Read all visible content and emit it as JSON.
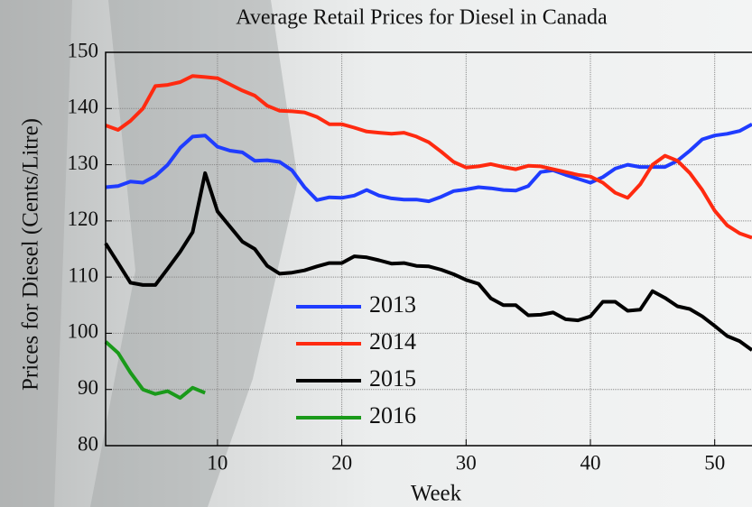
{
  "chart_data": {
    "type": "line",
    "title": "Average Retail Prices for Diesel in Canada",
    "x_label": "Week",
    "y_label": "Prices for Diesel  (Cents/Litre)",
    "x": [
      1,
      2,
      3,
      4,
      5,
      6,
      7,
      8,
      9,
      10,
      11,
      12,
      13,
      14,
      15,
      16,
      17,
      18,
      19,
      20,
      21,
      22,
      23,
      24,
      25,
      26,
      27,
      28,
      29,
      30,
      31,
      32,
      33,
      34,
      35,
      36,
      37,
      38,
      39,
      40,
      41,
      42,
      43,
      44,
      45,
      46,
      47,
      48,
      49,
      50,
      51,
      52,
      53
    ],
    "series": [
      {
        "name": "2013",
        "color": "#1f3cff",
        "values": [
          126,
          126.2,
          127,
          126.8,
          128,
          130,
          133,
          135,
          135.2,
          133.2,
          132.5,
          132.2,
          130.7,
          130.8,
          130.5,
          129,
          126,
          123.7,
          124.2,
          124.1,
          124.5,
          125.5,
          124.5,
          124,
          123.8,
          123.8,
          123.5,
          124.3,
          125.3,
          125.6,
          126,
          125.8,
          125.5,
          125.4,
          126.2,
          128.7,
          129,
          128.2,
          127.5,
          126.8,
          127.8,
          129.3,
          130,
          129.6,
          129.6,
          129.6,
          130.7,
          132.5,
          134.5,
          135.2,
          135.5,
          136,
          137.2
        ]
      },
      {
        "name": "2014",
        "color": "#ff2a10",
        "values": [
          137,
          136.2,
          137.8,
          140,
          144,
          144.2,
          144.7,
          145.8,
          145.6,
          145.4,
          144.3,
          143.2,
          142.3,
          140.5,
          139.6,
          139.5,
          139.3,
          138.5,
          137.2,
          137.2,
          136.6,
          135.9,
          135.7,
          135.5,
          135.7,
          135,
          134,
          132.3,
          130.5,
          129.5,
          129.7,
          130.1,
          129.6,
          129.2,
          129.8,
          129.7,
          129.2,
          128.7,
          128.2,
          127.9,
          126.8,
          125,
          124.1,
          126.5,
          130,
          131.6,
          130.7,
          128.5,
          125.5,
          121.8,
          119.2,
          117.8,
          117
        ]
      },
      {
        "name": "2015",
        "color": "#000000",
        "values": [
          116,
          112.5,
          109,
          108.6,
          108.6,
          111.5,
          114.5,
          118,
          128.5,
          121.7,
          119,
          116.3,
          115,
          112,
          110.6,
          110.8,
          111.2,
          111.9,
          112.5,
          112.5,
          113.7,
          113.5,
          113,
          112.4,
          112.5,
          112,
          111.9,
          111.3,
          110.5,
          109.5,
          108.8,
          106.2,
          105,
          105,
          103.2,
          103.3,
          103.7,
          102.5,
          102.3,
          103,
          105.6,
          105.6,
          104,
          104.2,
          107.5,
          106.3,
          104.8,
          104.3,
          103,
          101.3,
          99.5,
          98.6,
          97
        ]
      },
      {
        "name": "2016",
        "color": "#1a9a1a",
        "values": [
          98.5,
          96.5,
          93,
          90,
          89.2,
          89.7,
          88.5,
          90.3,
          89.4,
          null,
          null,
          null,
          null,
          null,
          null,
          null,
          null,
          null,
          null,
          null,
          null,
          null,
          null,
          null,
          null,
          null,
          null,
          null,
          null,
          null,
          null,
          null,
          null,
          null,
          null,
          null,
          null,
          null,
          null,
          null,
          null,
          null,
          null,
          null,
          null,
          null,
          null,
          null,
          null,
          null,
          null,
          null,
          null
        ]
      }
    ],
    "xlim": [
      1,
      53
    ],
    "xticks": [
      10,
      20,
      30,
      40,
      50
    ],
    "ylim": [
      80,
      150
    ],
    "yticks": [
      80,
      90,
      100,
      110,
      120,
      130,
      140,
      150
    ],
    "grid": true
  }
}
